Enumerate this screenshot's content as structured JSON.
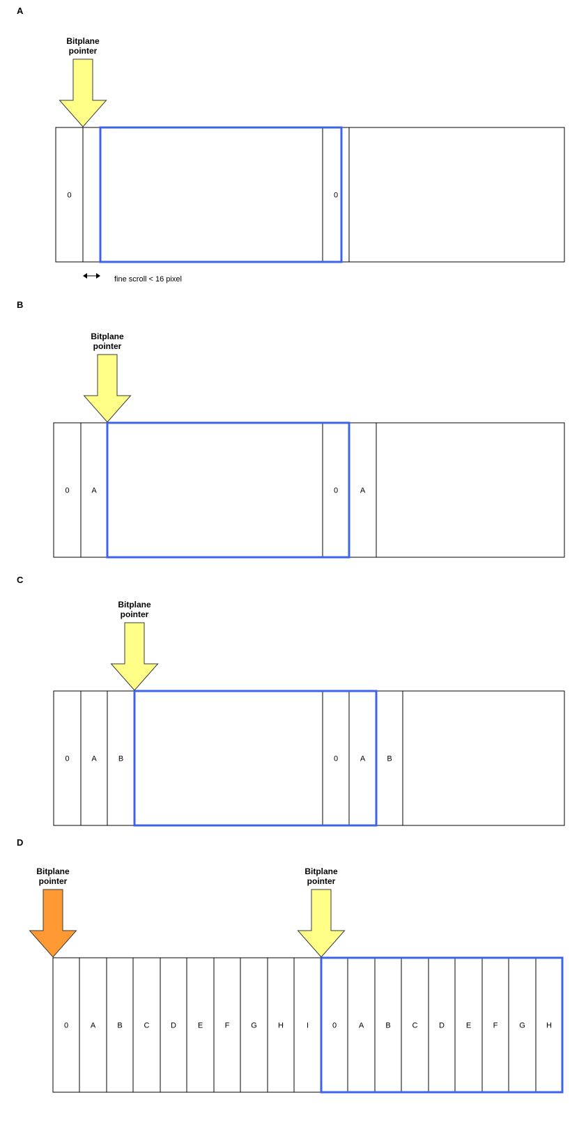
{
  "colors": {
    "pointer_yellow": "#ffff88",
    "pointer_orange": "#ff9933",
    "pointer_stroke": "#36393d",
    "viewport_blue": "#3d64e8",
    "cell_stroke": "#000000"
  },
  "panels": [
    {
      "label": "A",
      "cells": [
        "0",
        "",
        "",
        "0",
        "",
        ""
      ],
      "pointers": [
        {
          "label_line1": "Bitplane",
          "label_line2": "pointer",
          "color": "yellow",
          "at_cell": 1
        }
      ],
      "viewport": {
        "start_cell": 1,
        "end_cell": 3,
        "fine_start": true
      },
      "fine_scroll_note": "fine scroll < 16 pixel",
      "fine_scroll_arrow_icon": "double-arrow-icon"
    },
    {
      "label": "B",
      "cells": [
        "0",
        "A",
        "",
        "0",
        "A",
        ""
      ],
      "pointers": [
        {
          "label_line1": "Bitplane",
          "label_line2": "pointer",
          "color": "yellow",
          "at_cell": 2
        }
      ],
      "viewport": {
        "start_cell": 2,
        "end_cell": 4
      }
    },
    {
      "label": "C",
      "cells": [
        "0",
        "A",
        "B",
        "",
        "0",
        "A",
        "B",
        ""
      ],
      "pointers": [
        {
          "label_line1": "Bitplane",
          "label_line2": "pointer",
          "color": "yellow",
          "at_cell": 3
        }
      ],
      "viewport": {
        "start_cell": 3,
        "end_cell": 6
      }
    },
    {
      "label": "D",
      "cells": [
        "0",
        "A",
        "B",
        "C",
        "D",
        "E",
        "F",
        "G",
        "H",
        "I",
        "0",
        "A",
        "B",
        "C",
        "D",
        "E",
        "F",
        "G",
        "H"
      ],
      "pointers": [
        {
          "label_line1": "Bitplane",
          "label_line2": "pointer",
          "color": "orange",
          "at_cell": 0
        },
        {
          "label_line1": "Bitplane",
          "label_line2": "pointer",
          "color": "yellow",
          "at_cell": 10
        }
      ],
      "viewport": {
        "start_cell": 10,
        "end_cell": 19
      }
    }
  ]
}
